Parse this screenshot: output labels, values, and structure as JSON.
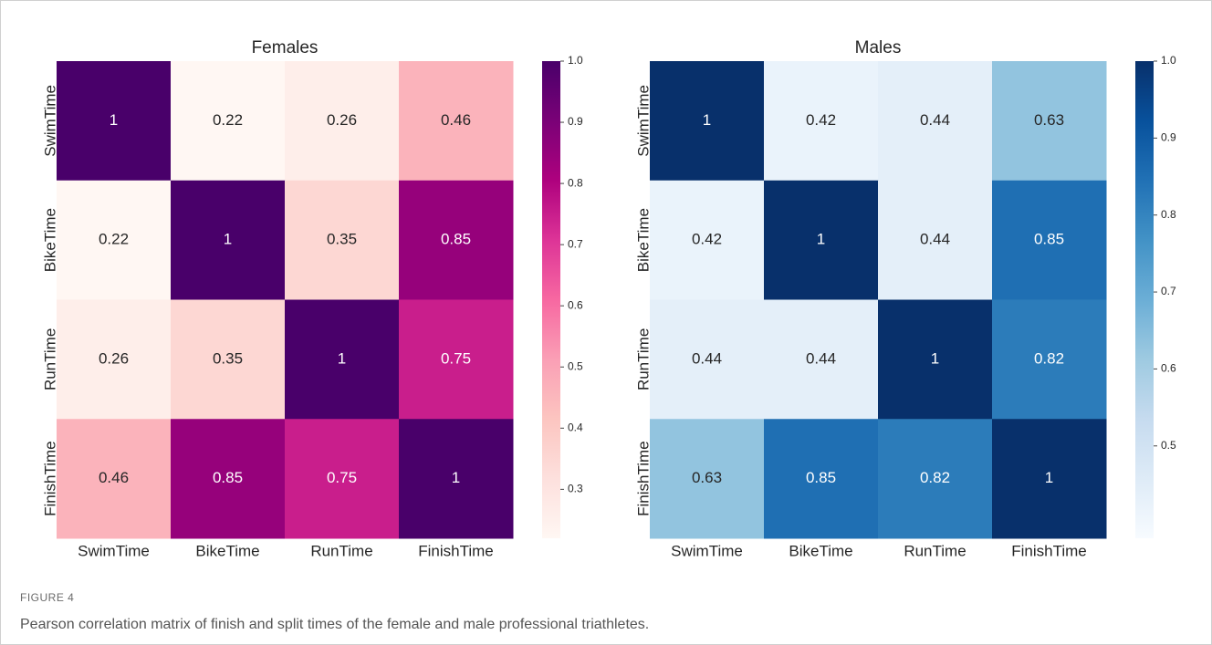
{
  "chart_data": [
    {
      "type": "heatmap",
      "title": "Females",
      "x_categories": [
        "SwimTime",
        "BikeTime",
        "RunTime",
        "FinishTime"
      ],
      "y_categories": [
        "SwimTime",
        "BikeTime",
        "RunTime",
        "FinishTime"
      ],
      "values": [
        [
          1,
          0.22,
          0.26,
          0.46
        ],
        [
          0.22,
          1,
          0.35,
          0.85
        ],
        [
          0.26,
          0.35,
          1,
          0.75
        ],
        [
          0.46,
          0.85,
          0.75,
          1
        ]
      ],
      "clim": [
        0.22,
        1.0
      ],
      "cticks": [
        0.3,
        0.4,
        0.5,
        0.6,
        0.7,
        0.8,
        0.9,
        {
          "value": 1.0,
          "label": "1.0"
        }
      ],
      "colorscale": [
        "#fff7f3",
        "#fde0dd",
        "#fcc5c0",
        "#fa9fb5",
        "#f768a1",
        "#dd3497",
        "#ae017e",
        "#7a0177",
        "#49006a"
      ]
    },
    {
      "type": "heatmap",
      "title": "Males",
      "x_categories": [
        "SwimTime",
        "BikeTime",
        "RunTime",
        "FinishTime"
      ],
      "y_categories": [
        "SwimTime",
        "BikeTime",
        "RunTime",
        "FinishTime"
      ],
      "values": [
        [
          1,
          0.42,
          0.44,
          0.63
        ],
        [
          0.42,
          1,
          0.44,
          0.85
        ],
        [
          0.44,
          0.44,
          1,
          0.82
        ],
        [
          0.63,
          0.85,
          0.82,
          1
        ]
      ],
      "clim": [
        0.38,
        1.0
      ],
      "cticks": [
        0.5,
        0.6,
        0.7,
        0.8,
        0.9,
        {
          "value": 1.0,
          "label": "1.0"
        }
      ],
      "colorscale": [
        "#f7fbff",
        "#deebf7",
        "#c6dbef",
        "#9ecae1",
        "#6baed6",
        "#4292c6",
        "#2171b5",
        "#08519c",
        "#08306b"
      ]
    }
  ],
  "figure": {
    "label": "FIGURE 4",
    "caption": "Pearson correlation matrix of finish and split times of the female and male professional triathletes."
  }
}
